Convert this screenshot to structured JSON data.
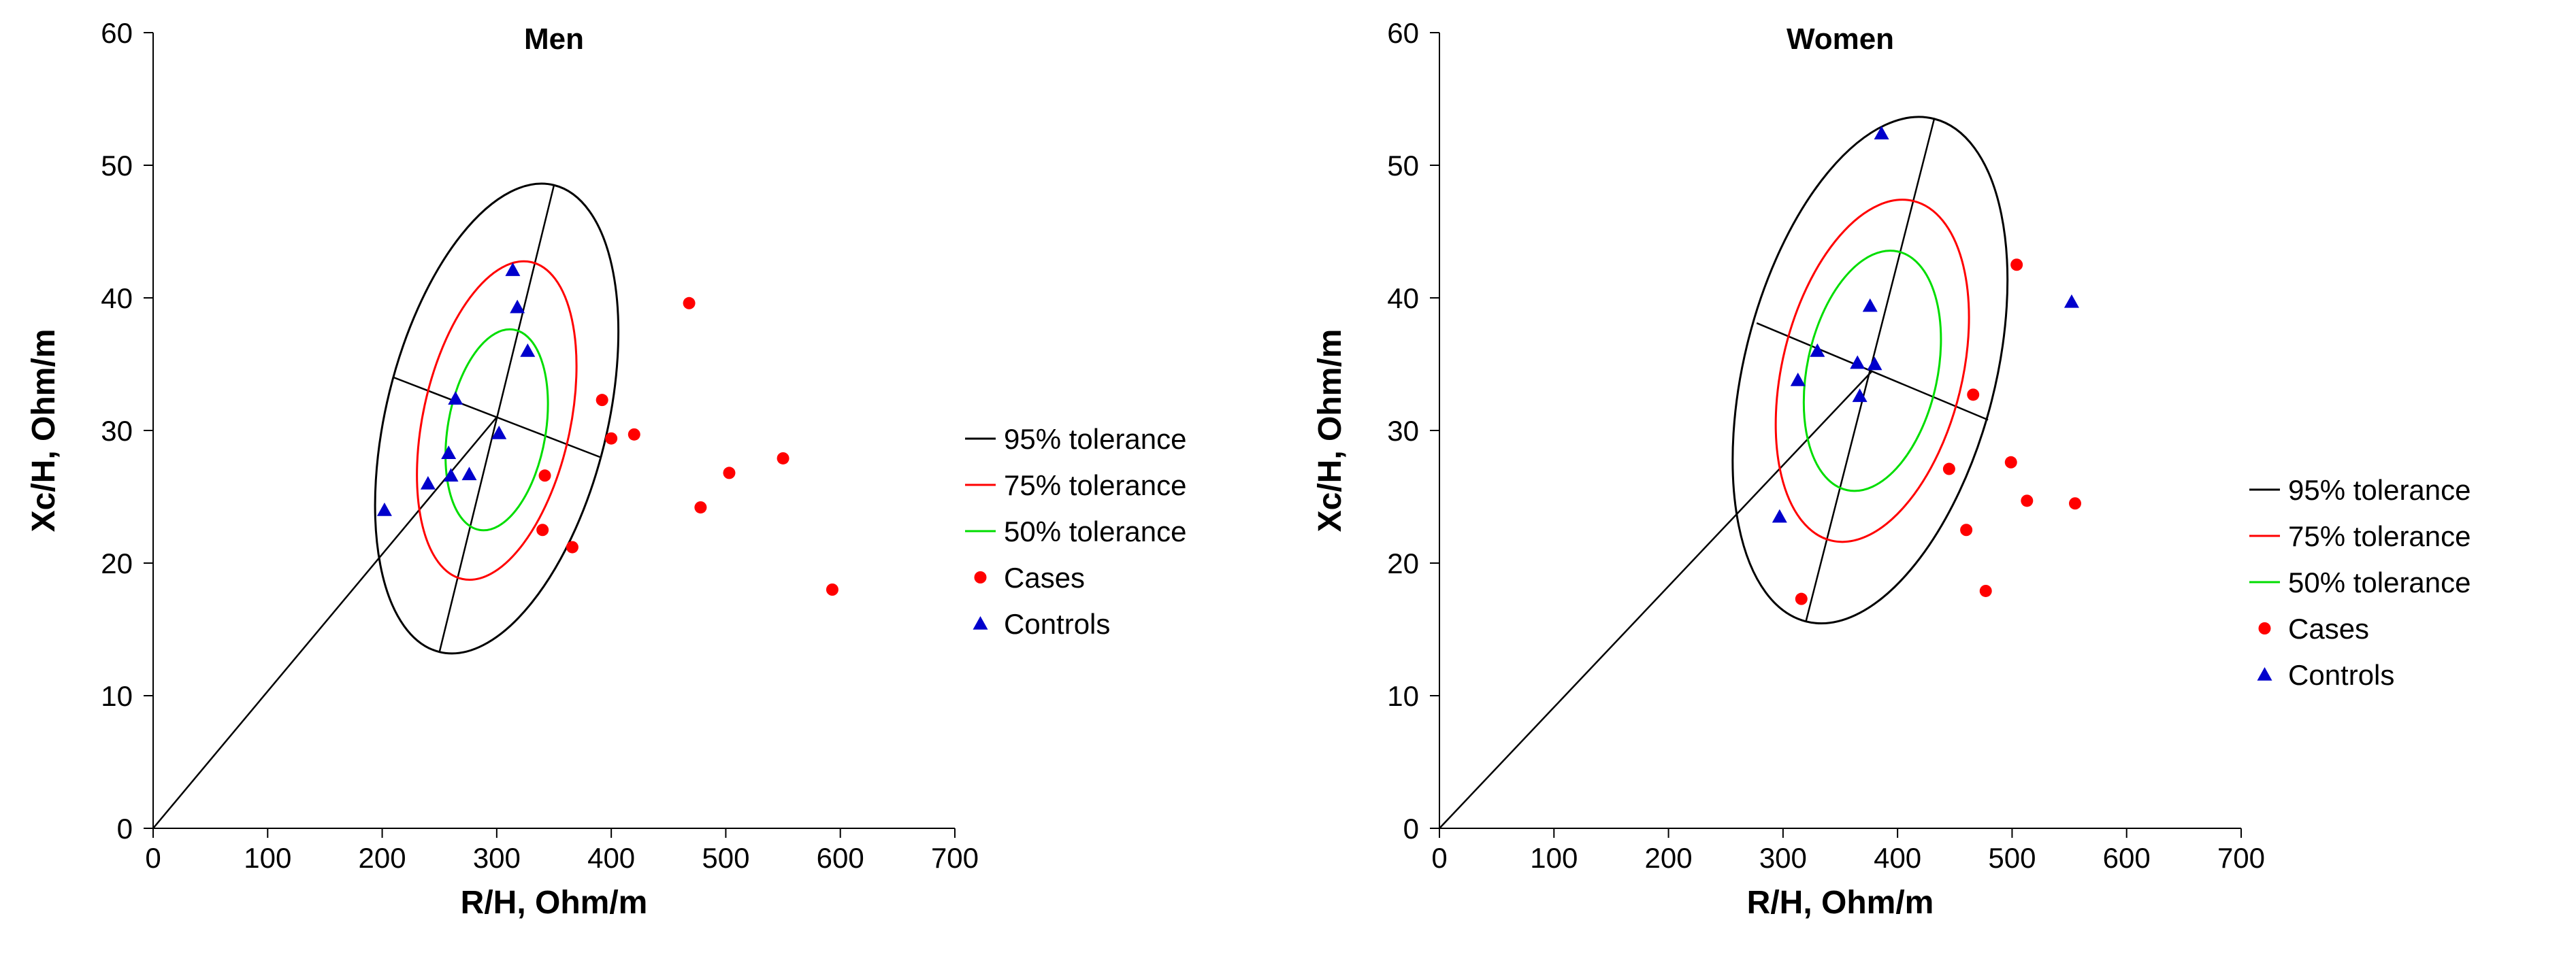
{
  "chart_data": [
    {
      "type": "scatter",
      "title": "Men",
      "xlabel": "R/H, Ohm/m",
      "ylabel": "Xc/H, Ohm/m",
      "xlim": [
        0,
        700
      ],
      "ylim": [
        0,
        60
      ],
      "xticks": [
        "0",
        "100",
        "200",
        "300",
        "400",
        "500",
        "600",
        "700"
      ],
      "yticks": [
        "0",
        "10",
        "20",
        "30",
        "40",
        "50",
        "60"
      ],
      "legend": [
        "95% tolerance",
        "75% tolerance",
        "50% tolerance",
        "Cases",
        "Controls"
      ],
      "colors": {
        "t95": "#000000",
        "t75": "#ff0000",
        "t50": "#00dd00",
        "cases": "#ff0000",
        "controls": "#0000cc"
      },
      "ellipse_center": [
        300,
        31
      ],
      "tolerance_ellipses": {
        "t95": {
          "major_axis": [
            [
              350,
              48.5
            ],
            [
              250,
              13.3
            ]
          ],
          "minor_axis": [
            [
              210,
              34
            ],
            [
              390,
              28
            ]
          ]
        },
        "t75": {
          "major_axis": [
            [
              330,
              42.7
            ],
            [
              270,
              18.8
            ]
          ],
          "minor_axis": [
            [
              240,
              33
            ],
            [
              360,
              29
            ]
          ]
        },
        "t50": {
          "major_axis": [
            [
              315,
              37.6
            ],
            [
              285,
              22.5
            ]
          ],
          "minor_axis": [
            [
              260,
              32.3
            ],
            [
              340,
              29.7
            ]
          ]
        }
      },
      "origin_line": [
        [
          0,
          0
        ],
        [
          300,
          31
        ]
      ],
      "cases": [
        [
          468,
          39.6
        ],
        [
          392,
          32.3
        ],
        [
          400,
          29.4
        ],
        [
          420,
          29.7
        ],
        [
          342,
          26.6
        ],
        [
          550,
          27.9
        ],
        [
          503,
          26.8
        ],
        [
          478,
          24.2
        ],
        [
          340,
          22.5
        ],
        [
          366,
          21.2
        ],
        [
          593,
          18
        ]
      ],
      "controls": [
        [
          314,
          42.1
        ],
        [
          318,
          39.3
        ],
        [
          327,
          36
        ],
        [
          264,
          32.4
        ],
        [
          302,
          29.8
        ],
        [
          258,
          28.3
        ],
        [
          276,
          26.7
        ],
        [
          240,
          26
        ],
        [
          260,
          26.6
        ],
        [
          202,
          24
        ]
      ]
    },
    {
      "type": "scatter",
      "title": "Women",
      "xlabel": "R/H, Ohm/m",
      "ylabel": "Xc/H, Ohm/m",
      "xlim": [
        0,
        700
      ],
      "ylim": [
        0,
        60
      ],
      "xticks": [
        "0",
        "100",
        "200",
        "300",
        "400",
        "500",
        "600",
        "700"
      ],
      "yticks": [
        "0",
        "10",
        "20",
        "30",
        "40",
        "50",
        "60"
      ],
      "legend": [
        "95% tolerance",
        "75% tolerance",
        "50% tolerance",
        "Cases",
        "Controls"
      ],
      "colors": {
        "t95": "#000000",
        "t75": "#ff0000",
        "t50": "#00dd00",
        "cases": "#ff0000",
        "controls": "#0000cc"
      },
      "ellipse_center": [
        378,
        34.5
      ],
      "tolerance_ellipses": {
        "t95": {
          "major_axis": [
            [
              432,
              53.5
            ],
            [
              320,
              15.6
            ]
          ],
          "minor_axis": [
            [
              277,
              38.1
            ],
            [
              479,
              30.8
            ]
          ]
        },
        "t75": {
          "major_axis": [
            [
              414,
              47.3
            ],
            [
              342,
              21.7
            ]
          ],
          "minor_axis": [
            [
              305,
              37.1
            ],
            [
              450,
              31.9
            ]
          ]
        },
        "t50": {
          "major_axis": [
            [
              400,
              43.5
            ],
            [
              356,
              25.5
            ]
          ],
          "minor_axis": [
            [
              325,
              36.4
            ],
            [
              430,
              32.6
            ]
          ]
        }
      },
      "origin_line": [
        [
          0,
          0
        ],
        [
          378,
          34.5
        ]
      ],
      "cases": [
        [
          504,
          42.5
        ],
        [
          466,
          32.7
        ],
        [
          499,
          27.6
        ],
        [
          445,
          27.1
        ],
        [
          513,
          24.7
        ],
        [
          555,
          24.5
        ],
        [
          460,
          22.5
        ],
        [
          477,
          17.9
        ],
        [
          316,
          17.3
        ]
      ],
      "controls": [
        [
          386,
          52.4
        ],
        [
          552,
          39.7
        ],
        [
          376,
          39.4
        ],
        [
          330,
          36
        ],
        [
          365,
          35.1
        ],
        [
          380,
          35
        ],
        [
          313,
          33.8
        ],
        [
          367,
          32.6
        ],
        [
          297,
          23.5
        ]
      ]
    }
  ]
}
